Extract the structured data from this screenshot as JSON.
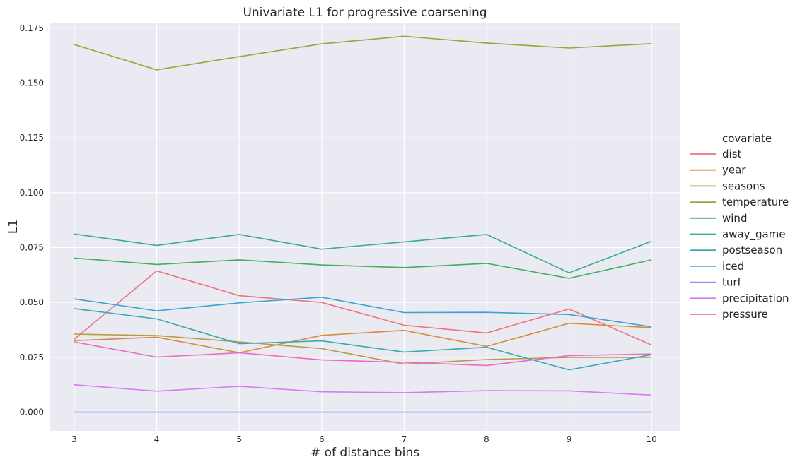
{
  "chart_data": {
    "type": "line",
    "title": "Univariate L1 for progressive coarsening",
    "xlabel": "# of distance bins",
    "ylabel": "L1",
    "x": [
      3,
      4,
      5,
      6,
      7,
      8,
      9,
      10
    ],
    "xlim": [
      2.7,
      10.35
    ],
    "ylim": [
      -0.0085,
      0.1775
    ],
    "y_ticks": [
      0.0,
      0.025,
      0.05,
      0.075,
      0.1,
      0.125,
      0.15,
      0.175
    ],
    "y_tick_labels": [
      "0.000",
      "0.025",
      "0.050",
      "0.075",
      "0.100",
      "0.125",
      "0.150",
      "0.175"
    ],
    "x_tick_labels": [
      "3",
      "4",
      "5",
      "6",
      "7",
      "8",
      "9",
      "10"
    ],
    "grid": true,
    "legend_title": "covariate",
    "legend_position": "right",
    "series": [
      {
        "name": "dist",
        "color": "#f0717e",
        "values": [
          0.0333,
          0.0644,
          0.0531,
          0.05,
          0.0396,
          0.0361,
          0.047,
          0.0306
        ]
      },
      {
        "name": "year",
        "color": "#db8a3b",
        "values": [
          0.0326,
          0.0342,
          0.0271,
          0.035,
          0.0373,
          0.03,
          0.0405,
          0.0385
        ]
      },
      {
        "name": "seasons",
        "color": "#b79a48",
        "values": [
          0.0356,
          0.0349,
          0.032,
          0.029,
          0.0219,
          0.024,
          0.025,
          0.025
        ]
      },
      {
        "name": "temperature",
        "color": "#98a639",
        "values": [
          0.1675,
          0.156,
          0.162,
          0.1678,
          0.1713,
          0.1682,
          0.1659,
          0.1679
        ]
      },
      {
        "name": "wind",
        "color": "#3fb05b",
        "values": [
          0.0702,
          0.0673,
          0.0694,
          0.0671,
          0.0659,
          0.0678,
          0.061,
          0.0694
        ]
      },
      {
        "name": "away_game",
        "color": "#36ad8d",
        "values": [
          0.0812,
          0.076,
          0.081,
          0.0743,
          0.0776,
          0.081,
          0.0635,
          0.0779
        ]
      },
      {
        "name": "postseason",
        "color": "#37aab0",
        "values": [
          0.0472,
          0.0425,
          0.0312,
          0.0325,
          0.0274,
          0.0296,
          0.0193,
          0.0262
        ]
      },
      {
        "name": "iced",
        "color": "#3ba3d3",
        "values": [
          0.0516,
          0.0462,
          0.0498,
          0.0524,
          0.0454,
          0.0455,
          0.0445,
          0.0389
        ]
      },
      {
        "name": "turf",
        "color": "#8e95ee",
        "values": [
          0.0,
          0.0,
          0.0,
          0.0,
          0.0,
          0.0,
          0.0,
          0.0
        ]
      },
      {
        "name": "precipitation",
        "color": "#d67cef",
        "values": [
          0.0125,
          0.0096,
          0.0118,
          0.0093,
          0.0089,
          0.0098,
          0.0097,
          0.0078
        ]
      },
      {
        "name": "pressure",
        "color": "#ee6ac2",
        "values": [
          0.032,
          0.0251,
          0.0271,
          0.0238,
          0.0227,
          0.0213,
          0.0258,
          0.0265
        ]
      }
    ]
  }
}
